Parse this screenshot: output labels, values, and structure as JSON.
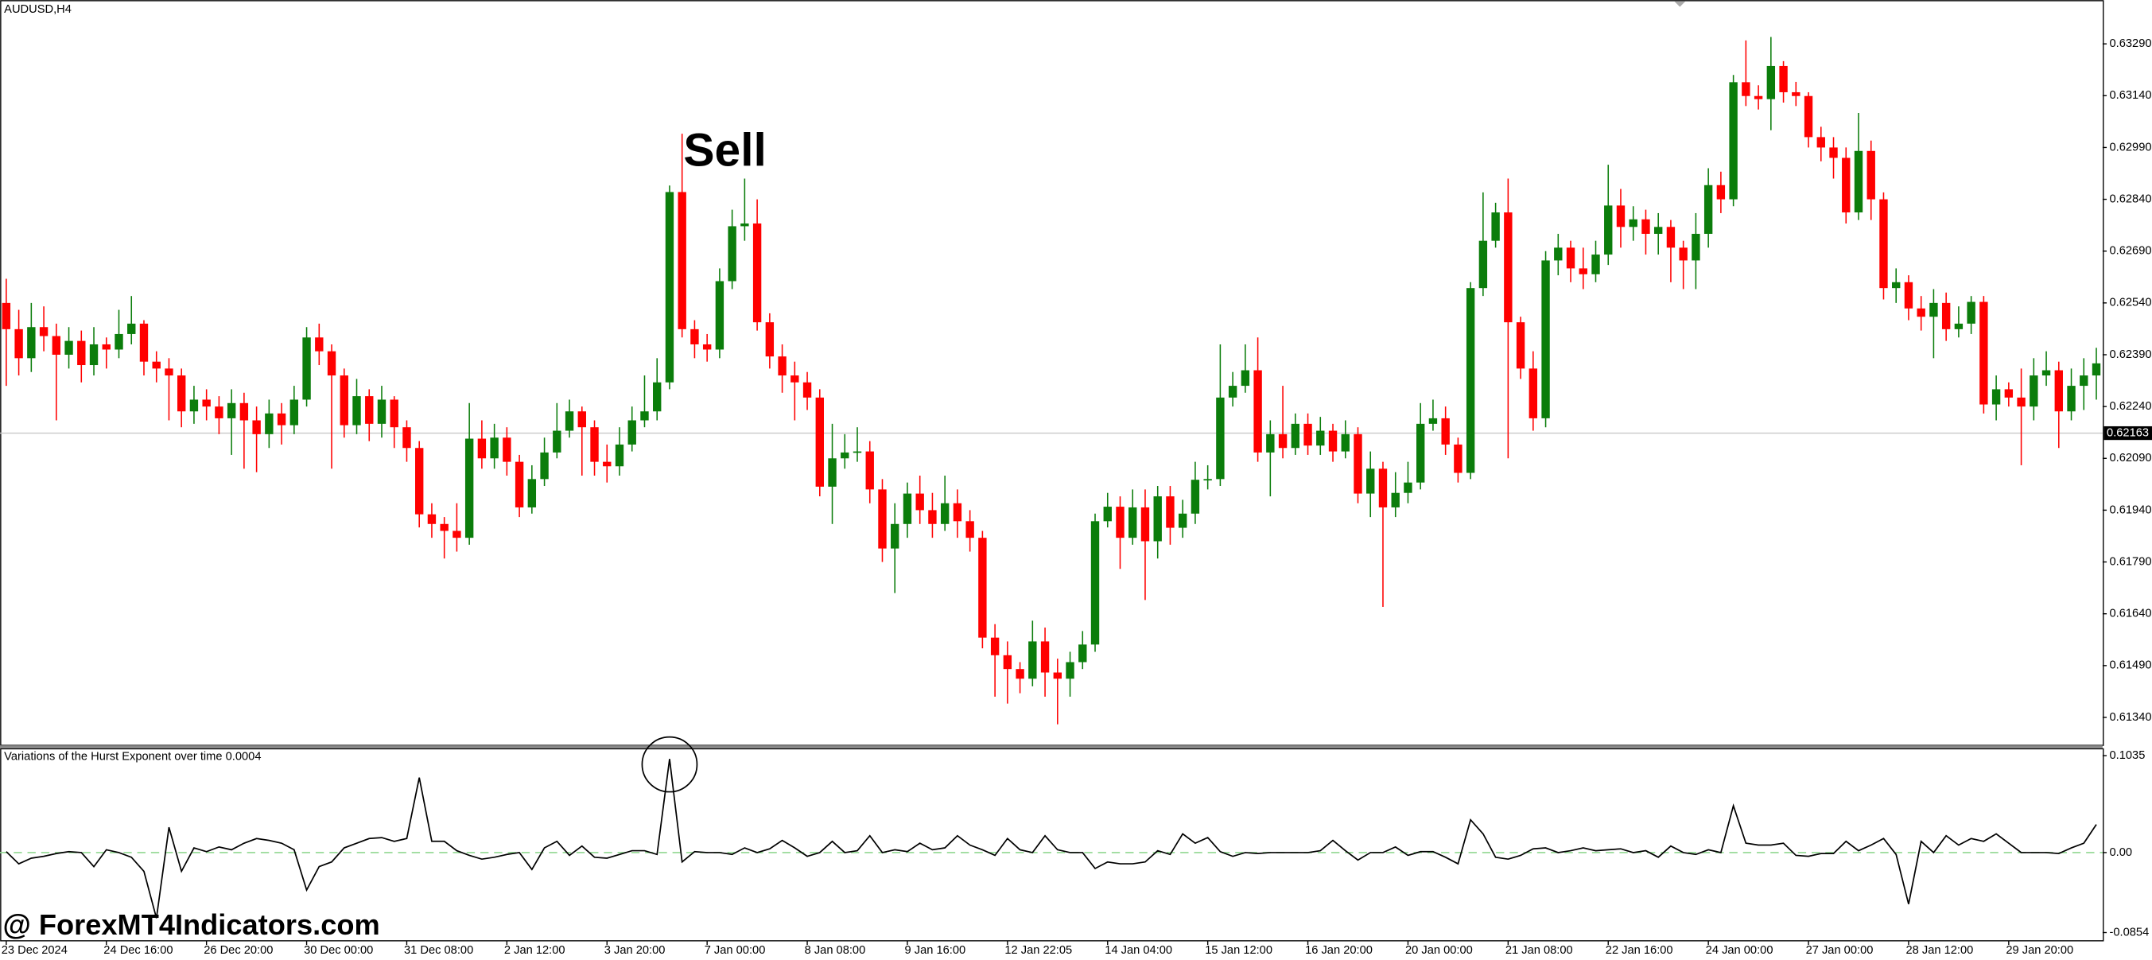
{
  "chart_data": {
    "type": "candlestick",
    "title": "AUDUSD,H4",
    "annotation": "Sell",
    "watermark": "@ ForexMT4Indicators.com",
    "up_color": "#0b7d0b",
    "down_color": "#ff0000",
    "categories": [
      "23 Dec 2024",
      null,
      null,
      null,
      null,
      null,
      null,
      null,
      "24 Dec 16:00",
      null,
      null,
      null,
      null,
      null,
      null,
      null,
      "26 Dec 20:00",
      null,
      null,
      null,
      null,
      null,
      null,
      null,
      "30 Dec 00:00",
      null,
      null,
      null,
      null,
      null,
      null,
      null,
      "31 Dec 08:00",
      null,
      null,
      null,
      null,
      null,
      null,
      null,
      "2 Jan 12:00",
      null,
      null,
      null,
      null,
      null,
      null,
      null,
      "3 Jan 20:00",
      null,
      null,
      null,
      null,
      null,
      null,
      null,
      "7 Jan 00:00",
      null,
      null,
      null,
      null,
      null,
      null,
      null,
      "8 Jan 08:00",
      null,
      null,
      null,
      null,
      null,
      null,
      null,
      "9 Jan 16:00",
      null,
      null,
      null,
      null,
      null,
      null,
      null,
      "12 Jan 22:05",
      null,
      null,
      null,
      null,
      null,
      null,
      null,
      "14 Jan 04:00",
      null,
      null,
      null,
      null,
      null,
      null,
      null,
      "15 Jan 12:00",
      null,
      null,
      null,
      null,
      null,
      null,
      null,
      "16 Jan 20:00",
      null,
      null,
      null,
      null,
      null,
      null,
      null,
      "20 Jan 00:00",
      null,
      null,
      null,
      null,
      null,
      null,
      null,
      "21 Jan 08:00",
      null,
      null,
      null,
      null,
      null,
      null,
      null,
      "22 Jan 16:00",
      null,
      null,
      null,
      null,
      null,
      null,
      null,
      "24 Jan 00:00",
      null,
      null,
      null,
      null,
      null,
      null,
      null,
      "27 Jan 00:00",
      null,
      null,
      null,
      null,
      null,
      null,
      null,
      "28 Jan 12:00",
      null,
      null,
      null,
      null,
      null,
      null,
      null,
      "29 Jan 20:00",
      null,
      null,
      null,
      null,
      null,
      null,
      null
    ],
    "open": [
      0.6254,
      0.62464,
      0.6238,
      0.6247,
      0.62444,
      0.6239,
      0.6243,
      0.6236,
      0.6242,
      0.62405,
      0.6245,
      0.6248,
      0.6237,
      0.6235,
      0.6233,
      0.62226,
      0.6226,
      0.6224,
      0.62206,
      0.6225,
      0.622,
      0.6216,
      0.6222,
      0.62186,
      0.6226,
      0.6244,
      0.624,
      0.6233,
      0.62186,
      0.6227,
      0.6219,
      0.6226,
      0.6218,
      0.6212,
      0.61928,
      0.619,
      0.6188,
      0.6186,
      0.62147,
      0.6209,
      0.6215,
      0.6208,
      0.61948,
      0.6203,
      0.62107,
      0.6217,
      0.62226,
      0.6218,
      0.6208,
      0.62067,
      0.6213,
      0.622,
      0.62226,
      0.6231,
      0.62861,
      0.62464,
      0.6242,
      0.62405,
      0.62603,
      0.62762,
      0.6277,
      0.62484,
      0.62385,
      0.6233,
      0.6231,
      0.62266,
      0.62008,
      0.6209,
      0.62107,
      0.6211,
      0.62,
      0.61829,
      0.619,
      0.61988,
      0.6194,
      0.619,
      0.6196,
      0.61908,
      0.6186,
      0.61571,
      0.6152,
      0.6148,
      0.61452,
      0.6156,
      0.6147,
      0.61452,
      0.615,
      0.61551,
      0.61908,
      0.6195,
      0.6186,
      0.61948,
      0.6185,
      0.6198,
      0.61889,
      0.6193,
      0.62028,
      0.6203,
      0.62266,
      0.623,
      0.62345,
      0.62107,
      0.6216,
      0.6212,
      0.6219,
      0.62127,
      0.6217,
      0.6211,
      0.6216,
      0.61988,
      0.6206,
      0.61948,
      0.6199,
      0.6202,
      0.6219,
      0.62206,
      0.6213,
      0.62048,
      0.62583,
      0.6272,
      0.62802,
      0.62484,
      0.6235,
      0.62206,
      0.62663,
      0.627,
      0.6264,
      0.62623,
      0.6268,
      0.62822,
      0.6276,
      0.62782,
      0.6274,
      0.6276,
      0.627,
      0.62663,
      0.6274,
      0.62881,
      0.6284,
      0.63179,
      0.63139,
      0.6313,
      0.63226,
      0.6315,
      0.63139,
      0.6302,
      0.6299,
      0.6296,
      0.62802,
      0.6298,
      0.6284,
      0.62583,
      0.626,
      0.62524,
      0.625,
      0.6254,
      0.62464,
      0.6248,
      0.62543,
      0.62246,
      0.6229,
      0.62266,
      0.6224,
      0.6233,
      0.62345,
      0.62226,
      0.623,
      0.6233
    ],
    "high": [
      0.6261,
      0.6252,
      0.6254,
      0.6253,
      0.6248,
      0.6247,
      0.6246,
      0.6247,
      0.6244,
      0.6252,
      0.6256,
      0.6249,
      0.624,
      0.6238,
      0.6235,
      0.623,
      0.6229,
      0.6227,
      0.6229,
      0.6228,
      0.6224,
      0.6226,
      0.6225,
      0.623,
      0.6247,
      0.6248,
      0.6242,
      0.6235,
      0.6232,
      0.6229,
      0.623,
      0.6227,
      0.622,
      0.6214,
      0.6196,
      0.6192,
      0.6196,
      0.6225,
      0.622,
      0.6219,
      0.6218,
      0.621,
      0.6207,
      0.6215,
      0.6225,
      0.6226,
      0.6224,
      0.622,
      0.6213,
      0.6218,
      0.6224,
      0.6233,
      0.6238,
      0.6288,
      0.6303,
      0.6249,
      0.6245,
      0.6264,
      0.6281,
      0.629,
      0.6284,
      0.6251,
      0.6242,
      0.6237,
      0.6234,
      0.6229,
      0.6219,
      0.6216,
      0.6218,
      0.6214,
      0.6203,
      0.6196,
      0.6202,
      0.6204,
      0.6199,
      0.6204,
      0.62,
      0.6194,
      0.6188,
      0.6161,
      0.6156,
      0.615,
      0.6162,
      0.616,
      0.6151,
      0.6153,
      0.6159,
      0.6193,
      0.6199,
      0.6198,
      0.62,
      0.62,
      0.6201,
      0.6201,
      0.6197,
      0.6208,
      0.6207,
      0.6242,
      0.6234,
      0.6242,
      0.6244,
      0.622,
      0.623,
      0.6222,
      0.6222,
      0.6221,
      0.6219,
      0.622,
      0.6218,
      0.6211,
      0.6208,
      0.6205,
      0.6208,
      0.6225,
      0.6226,
      0.6224,
      0.6215,
      0.626,
      0.6286,
      0.6283,
      0.629,
      0.625,
      0.624,
      0.6269,
      0.6274,
      0.6272,
      0.627,
      0.6272,
      0.6294,
      0.6287,
      0.6282,
      0.6281,
      0.628,
      0.6278,
      0.6272,
      0.628,
      0.6293,
      0.6292,
      0.632,
      0.633,
      0.6317,
      0.6331,
      0.6324,
      0.6318,
      0.6315,
      0.6305,
      0.6302,
      0.6299,
      0.6309,
      0.6301,
      0.6286,
      0.6264,
      0.6262,
      0.6256,
      0.6258,
      0.6257,
      0.6253,
      0.6256,
      0.6256,
      0.6233,
      0.6231,
      0.6235,
      0.6238,
      0.624,
      0.6237,
      0.6235,
      0.6238,
      0.6241
    ],
    "low": [
      0.623,
      0.6233,
      0.6234,
      0.624,
      0.622,
      0.6235,
      0.6231,
      0.6233,
      0.6235,
      0.6238,
      0.6242,
      0.6233,
      0.6231,
      0.622,
      0.6218,
      0.6219,
      0.622,
      0.6216,
      0.621,
      0.6206,
      0.6205,
      0.6212,
      0.6213,
      0.6216,
      0.6224,
      0.6236,
      0.6206,
      0.6215,
      0.6216,
      0.6214,
      0.6215,
      0.6212,
      0.6208,
      0.6189,
      0.6186,
      0.618,
      0.6182,
      0.6184,
      0.6206,
      0.6206,
      0.6204,
      0.6192,
      0.6193,
      0.6201,
      0.6209,
      0.6215,
      0.6204,
      0.6204,
      0.6202,
      0.6204,
      0.6211,
      0.6218,
      0.622,
      0.6229,
      0.6244,
      0.6238,
      0.6237,
      0.6238,
      0.6258,
      0.6272,
      0.6246,
      0.6235,
      0.6228,
      0.622,
      0.6223,
      0.6198,
      0.619,
      0.6206,
      0.6208,
      0.6196,
      0.6179,
      0.617,
      0.6186,
      0.619,
      0.6186,
      0.6188,
      0.6186,
      0.6182,
      0.6154,
      0.614,
      0.6138,
      0.6141,
      0.6143,
      0.614,
      0.6132,
      0.614,
      0.6148,
      0.6153,
      0.6189,
      0.6177,
      0.6184,
      0.6168,
      0.618,
      0.6184,
      0.6186,
      0.619,
      0.62,
      0.6201,
      0.6224,
      0.6228,
      0.6208,
      0.6198,
      0.6209,
      0.621,
      0.621,
      0.621,
      0.6208,
      0.6209,
      0.6196,
      0.6192,
      0.6166,
      0.6192,
      0.6196,
      0.62,
      0.6217,
      0.621,
      0.6202,
      0.6203,
      0.6256,
      0.627,
      0.6209,
      0.6232,
      0.6217,
      0.6218,
      0.6262,
      0.626,
      0.6258,
      0.626,
      0.6265,
      0.627,
      0.6272,
      0.6268,
      0.6268,
      0.626,
      0.6258,
      0.6258,
      0.627,
      0.628,
      0.6282,
      0.6311,
      0.631,
      0.6304,
      0.6312,
      0.6311,
      0.6299,
      0.6295,
      0.629,
      0.6277,
      0.6278,
      0.6278,
      0.6255,
      0.6254,
      0.6249,
      0.6246,
      0.6238,
      0.6243,
      0.6244,
      0.6245,
      0.6222,
      0.622,
      0.6224,
      0.6207,
      0.622,
      0.623,
      0.6212,
      0.622,
      0.6223,
      0.6226
    ],
    "close": [
      0.62464,
      0.6238,
      0.6247,
      0.62444,
      0.6239,
      0.6243,
      0.6236,
      0.6242,
      0.62405,
      0.6245,
      0.6248,
      0.6237,
      0.6235,
      0.6233,
      0.62226,
      0.6226,
      0.6224,
      0.62206,
      0.6225,
      0.622,
      0.6216,
      0.6222,
      0.62186,
      0.6226,
      0.6244,
      0.624,
      0.6233,
      0.62186,
      0.6227,
      0.6219,
      0.6226,
      0.6218,
      0.6212,
      0.61928,
      0.619,
      0.6188,
      0.6186,
      0.62147,
      0.6209,
      0.6215,
      0.6208,
      0.61948,
      0.6203,
      0.62107,
      0.6217,
      0.62226,
      0.6218,
      0.6208,
      0.62067,
      0.6213,
      0.622,
      0.62226,
      0.6231,
      0.62861,
      0.62464,
      0.6242,
      0.62405,
      0.62603,
      0.62762,
      0.6277,
      0.62484,
      0.62385,
      0.6233,
      0.6231,
      0.62266,
      0.62008,
      0.6209,
      0.62107,
      0.6211,
      0.62,
      0.61829,
      0.619,
      0.61988,
      0.6194,
      0.619,
      0.6196,
      0.61908,
      0.6186,
      0.61571,
      0.6152,
      0.6148,
      0.61452,
      0.6156,
      0.6147,
      0.61452,
      0.615,
      0.61551,
      0.61908,
      0.6195,
      0.6186,
      0.61948,
      0.6185,
      0.6198,
      0.61889,
      0.6193,
      0.62028,
      0.6203,
      0.62266,
      0.623,
      0.62345,
      0.62107,
      0.6216,
      0.6212,
      0.6219,
      0.62127,
      0.6217,
      0.6211,
      0.6216,
      0.61988,
      0.6206,
      0.61948,
      0.6199,
      0.6202,
      0.6219,
      0.62206,
      0.6213,
      0.62048,
      0.62583,
      0.6272,
      0.62802,
      0.62484,
      0.6235,
      0.62206,
      0.62663,
      0.627,
      0.6264,
      0.62623,
      0.6268,
      0.62822,
      0.6276,
      0.62782,
      0.6274,
      0.6276,
      0.627,
      0.62663,
      0.6274,
      0.62881,
      0.6284,
      0.63179,
      0.63139,
      0.6313,
      0.63226,
      0.6315,
      0.63139,
      0.6302,
      0.6299,
      0.6296,
      0.62802,
      0.6298,
      0.6284,
      0.62583,
      0.626,
      0.62524,
      0.625,
      0.6254,
      0.62464,
      0.6248,
      0.62543,
      0.62246,
      0.6229,
      0.62266,
      0.6224,
      0.6233,
      0.62345,
      0.62226,
      0.623,
      0.6233,
      0.62365
    ],
    "ylim": [
      0.61261,
      0.63417
    ],
    "yticks": [
      {
        "value": 0.6329,
        "label": "0.63290"
      },
      {
        "value": 0.6314,
        "label": "0.63140"
      },
      {
        "value": 0.6299,
        "label": "0.62990"
      },
      {
        "value": 0.6284,
        "label": "0.62840"
      },
      {
        "value": 0.6269,
        "label": "0.62690"
      },
      {
        "value": 0.6254,
        "label": "0.62540"
      },
      {
        "value": 0.6239,
        "label": "0.62390"
      },
      {
        "value": 0.6224,
        "label": "0.62240"
      },
      {
        "value": 0.6209,
        "label": "0.62090"
      },
      {
        "value": 0.6194,
        "label": "0.61940"
      },
      {
        "value": 0.6179,
        "label": "0.61790"
      },
      {
        "value": 0.6164,
        "label": "0.61640"
      },
      {
        "value": 0.6149,
        "label": "0.61490"
      },
      {
        "value": 0.6134,
        "label": "0.61340"
      }
    ],
    "current_price": {
      "value": 0.62163,
      "label": "0.62163"
    },
    "indicator": {
      "type": "line",
      "title": "Variations of the Hurst Exponent over time 0.0004",
      "color": "#000000",
      "zero_line_color": "#90d890",
      "ylim": [
        -0.0942,
        0.1108
      ],
      "yticks": [
        0.1035,
        {
          "value": 0,
          "label": "0.00"
        },
        -0.0854
      ],
      "values": [
        0.001,
        -0.012,
        -0.006,
        -0.004,
        -0.001,
        0.001,
        0,
        -0.015,
        0.003,
        0,
        -0.005,
        -0.02,
        -0.07,
        0.027,
        -0.02,
        0.005,
        0.001,
        0.006,
        0.003,
        0.01,
        0.015,
        0.013,
        0.01,
        0.003,
        -0.04,
        -0.015,
        -0.01,
        0.005,
        0.01,
        0.015,
        0.016,
        0.012,
        0.015,
        0.08,
        0.012,
        0.012,
        0.002,
        -0.003,
        -0.007,
        -0.005,
        -0.002,
        0,
        -0.018,
        0.005,
        0.012,
        -0.003,
        0.007,
        -0.005,
        -0.006,
        -0.002,
        0.002,
        0.002,
        -0.002,
        0.1,
        -0.01,
        0.001,
        0,
        0,
        -0.002,
        0.005,
        0,
        0.004,
        0.013,
        0.005,
        -0.004,
        0,
        0.012,
        0,
        0.002,
        0.018,
        0,
        0.003,
        0.001,
        0.01,
        0.003,
        0.005,
        0.018,
        0.008,
        0.003,
        -0.003,
        0.015,
        0.003,
        0,
        0.018,
        0.003,
        0,
        0,
        -0.017,
        -0.01,
        -0.012,
        -0.012,
        -0.01,
        0.002,
        -0.002,
        0.02,
        0.01,
        0.016,
        0.001,
        -0.004,
        0,
        -0.001,
        0,
        0,
        0,
        0,
        0.002,
        0.013,
        0.002,
        -0.008,
        0,
        0,
        0.006,
        -0.003,
        0.001,
        0.001,
        -0.005,
        -0.012,
        0.035,
        0.02,
        -0.005,
        -0.007,
        -0.003,
        0.004,
        0.005,
        0,
        0.002,
        0.005,
        0.002,
        0.003,
        0.004,
        0,
        0.002,
        -0.005,
        0.007,
        0,
        -0.002,
        0.003,
        0,
        0.05,
        0.01,
        0.008,
        0.008,
        0.01,
        -0.003,
        -0.004,
        -0.001,
        -0.001,
        0.012,
        0.002,
        0.008,
        0.015,
        -0.002,
        -0.055,
        0.012,
        0,
        0.018,
        0.008,
        0.015,
        0.012,
        0.02,
        0.01,
        0,
        0,
        0,
        -0.001,
        0.005,
        0.01,
        0.03
      ]
    }
  }
}
